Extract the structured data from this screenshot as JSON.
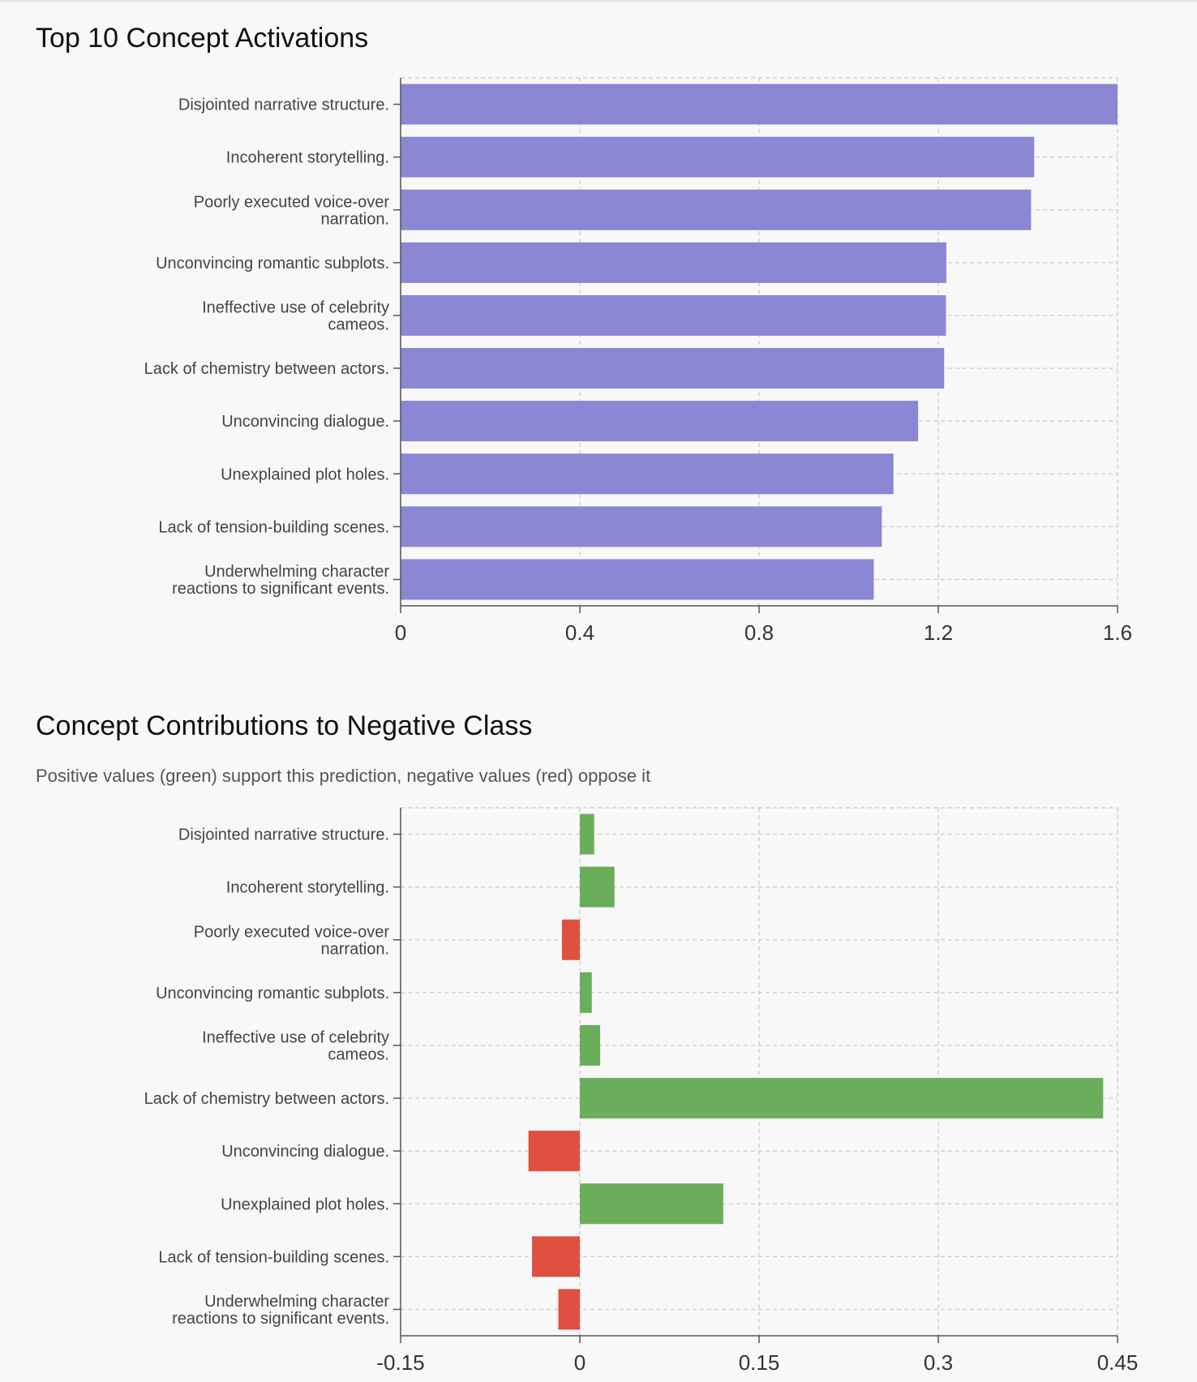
{
  "chart_data": [
    {
      "type": "bar",
      "orientation": "horizontal",
      "title": "Top 10 Concept Activations",
      "categories": [
        [
          "Disjointed narrative structure."
        ],
        [
          "Incoherent storytelling."
        ],
        [
          "Poorly executed voice-over",
          "narration."
        ],
        [
          "Unconvincing romantic subplots."
        ],
        [
          "Ineffective use of celebrity",
          "cameos."
        ],
        [
          "Lack of chemistry between actors."
        ],
        [
          "Unconvincing dialogue."
        ],
        [
          "Unexplained plot holes."
        ],
        [
          "Lack of tension-building scenes."
        ],
        [
          "Underwhelming character",
          "reactions to significant events."
        ]
      ],
      "values": [
        1.6,
        1.414,
        1.407,
        1.218,
        1.217,
        1.213,
        1.155,
        1.1,
        1.074,
        1.056
      ],
      "xlim": [
        0,
        1.6
      ],
      "xticks": [
        "0",
        "0.4",
        "0.8",
        "1.2",
        "1.6"
      ],
      "grid": true,
      "colors": {
        "bar": "#8a87d4"
      }
    },
    {
      "type": "bar",
      "orientation": "horizontal",
      "title": "Concept Contributions to Negative Class",
      "subtitle": "Positive values (green) support this prediction, negative values (red) oppose it",
      "categories": [
        [
          "Disjointed narrative structure."
        ],
        [
          "Incoherent storytelling."
        ],
        [
          "Poorly executed voice-over",
          "narration."
        ],
        [
          "Unconvincing romantic subplots."
        ],
        [
          "Ineffective use of celebrity",
          "cameos."
        ],
        [
          "Lack of chemistry between actors."
        ],
        [
          "Unconvincing dialogue."
        ],
        [
          "Unexplained plot holes."
        ],
        [
          "Lack of tension-building scenes."
        ],
        [
          "Underwhelming character",
          "reactions to significant events."
        ]
      ],
      "values": [
        0.012,
        0.029,
        -0.015,
        0.01,
        0.017,
        0.438,
        -0.043,
        0.12,
        -0.04,
        -0.018
      ],
      "xlim": [
        -0.15,
        0.45
      ],
      "xticks": [
        "-0.15",
        "0",
        "0.15",
        "0.3",
        "0.45"
      ],
      "grid": true,
      "colors": {
        "positive": "#6aae5c",
        "negative": "#e05040"
      }
    }
  ]
}
